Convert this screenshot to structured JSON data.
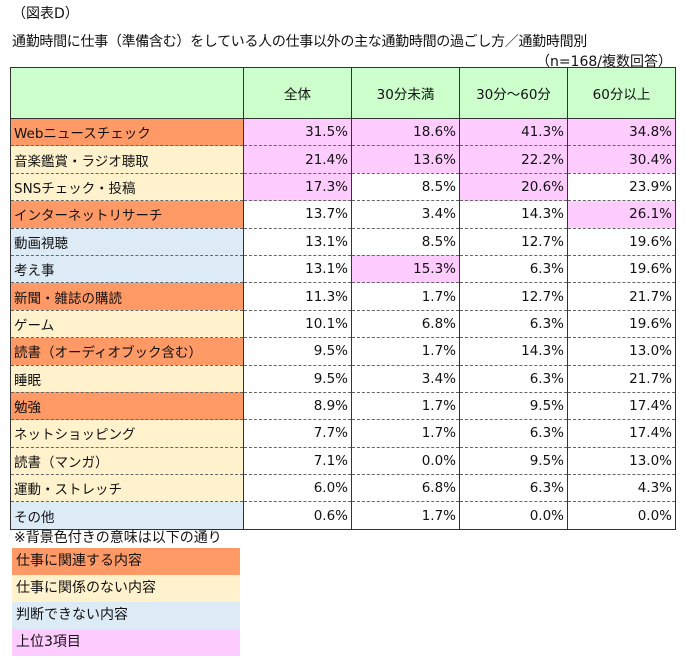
{
  "figure_label": "（図表D）",
  "title": "通勤時間に仕事（準備含む）をしている人の仕事以外の主な通勤時間の過ごし方／通勤時間別",
  "note": "（n=168/複数回答）",
  "colors": {
    "header": "#CCFFCC",
    "work_related": "#FF9966",
    "not_work_related": "#FFF2CC",
    "undetermined": "#DDEBF7",
    "top3": "#FFCCFF"
  },
  "columns": [
    "",
    "全体",
    "30分未満",
    "30分～60分",
    "60分以上"
  ],
  "rows": [
    {
      "label": "Webニュースチェック",
      "category": "work_related",
      "values": [
        "31.5%",
        "18.6%",
        "41.3%",
        "34.8%"
      ],
      "top3": [
        true,
        true,
        true,
        true
      ]
    },
    {
      "label": "音楽鑑賞・ラジオ聴取",
      "category": "not_work_related",
      "values": [
        "21.4%",
        "13.6%",
        "22.2%",
        "30.4%"
      ],
      "top3": [
        true,
        true,
        true,
        true
      ]
    },
    {
      "label": "SNSチェック・投稿",
      "category": "not_work_related",
      "values": [
        "17.3%",
        "8.5%",
        "20.6%",
        "23.9%"
      ],
      "top3": [
        true,
        false,
        true,
        false
      ]
    },
    {
      "label": "インターネットリサーチ",
      "category": "work_related",
      "values": [
        "13.7%",
        "3.4%",
        "14.3%",
        "26.1%"
      ],
      "top3": [
        false,
        false,
        false,
        true
      ]
    },
    {
      "label": "動画視聴",
      "category": "undetermined",
      "values": [
        "13.1%",
        "8.5%",
        "12.7%",
        "19.6%"
      ],
      "top3": [
        false,
        false,
        false,
        false
      ]
    },
    {
      "label": "考え事",
      "category": "undetermined",
      "values": [
        "13.1%",
        "15.3%",
        "6.3%",
        "19.6%"
      ],
      "top3": [
        false,
        true,
        false,
        false
      ]
    },
    {
      "label": "新聞・雑誌の購読",
      "category": "work_related",
      "values": [
        "11.3%",
        "1.7%",
        "12.7%",
        "21.7%"
      ],
      "top3": [
        false,
        false,
        false,
        false
      ]
    },
    {
      "label": "ゲーム",
      "category": "not_work_related",
      "values": [
        "10.1%",
        "6.8%",
        "6.3%",
        "19.6%"
      ],
      "top3": [
        false,
        false,
        false,
        false
      ]
    },
    {
      "label": "読書（オーディオブック含む）",
      "category": "work_related",
      "values": [
        "9.5%",
        "1.7%",
        "14.3%",
        "13.0%"
      ],
      "top3": [
        false,
        false,
        false,
        false
      ]
    },
    {
      "label": "睡眠",
      "category": "not_work_related",
      "values": [
        "9.5%",
        "3.4%",
        "6.3%",
        "21.7%"
      ],
      "top3": [
        false,
        false,
        false,
        false
      ]
    },
    {
      "label": "勉強",
      "category": "work_related",
      "values": [
        "8.9%",
        "1.7%",
        "9.5%",
        "17.4%"
      ],
      "top3": [
        false,
        false,
        false,
        false
      ]
    },
    {
      "label": "ネットショッピング",
      "category": "not_work_related",
      "values": [
        "7.7%",
        "1.7%",
        "6.3%",
        "17.4%"
      ],
      "top3": [
        false,
        false,
        false,
        false
      ]
    },
    {
      "label": "読書（マンガ）",
      "category": "not_work_related",
      "values": [
        "7.1%",
        "0.0%",
        "9.5%",
        "13.0%"
      ],
      "top3": [
        false,
        false,
        false,
        false
      ]
    },
    {
      "label": "運動・ストレッチ",
      "category": "not_work_related",
      "values": [
        "6.0%",
        "6.8%",
        "6.3%",
        "4.3%"
      ],
      "top3": [
        false,
        false,
        false,
        false
      ]
    },
    {
      "label": "その他",
      "category": "undetermined",
      "values": [
        "0.6%",
        "1.7%",
        "0.0%",
        "0.0%"
      ],
      "top3": [
        false,
        false,
        false,
        false
      ]
    }
  ],
  "legend": {
    "title": "※背景色付きの意味は以下の通り",
    "items": [
      {
        "label": "仕事に関連する内容",
        "key": "work_related"
      },
      {
        "label": "仕事に関係のない内容",
        "key": "not_work_related"
      },
      {
        "label": "判断できない内容",
        "key": "undetermined"
      },
      {
        "label": "上位3項目",
        "key": "top3"
      }
    ]
  }
}
